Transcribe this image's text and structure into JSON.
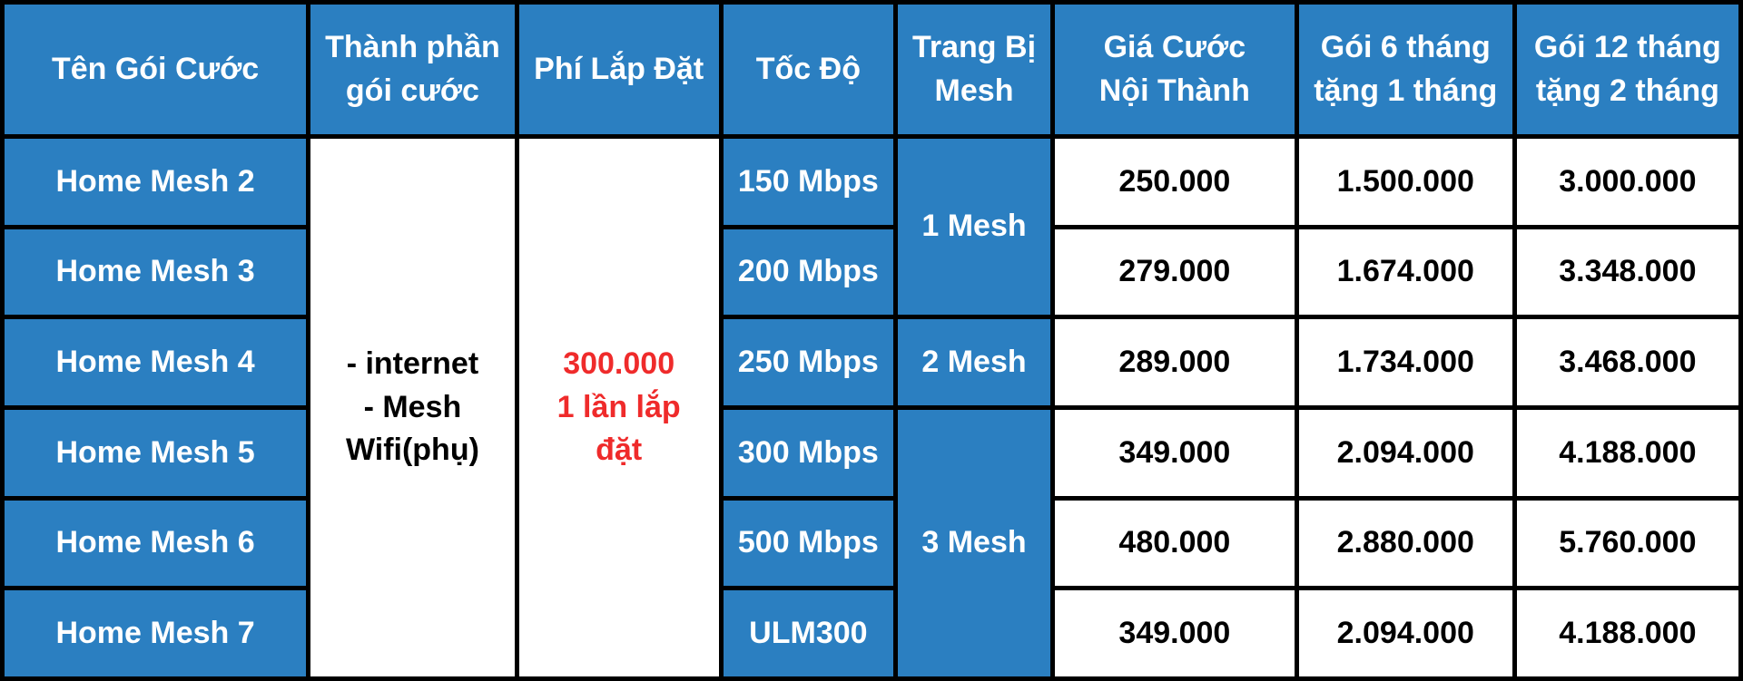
{
  "headers": {
    "package_name": "Tên Gói Cước",
    "components_line1": "Thành phần",
    "components_line2": "gói cước",
    "install_fee": "Phí Lắp Đặt",
    "speed": "Tốc Độ",
    "mesh_line1": "Trang Bị",
    "mesh_line2": "Mesh",
    "price_line1": "Giá Cước",
    "price_line2": "Nội Thành",
    "six_month_line1": "Gói 6 tháng",
    "six_month_line2": "tặng 1 tháng",
    "twelve_month_line1": "Gói 12 tháng",
    "twelve_month_line2": "tặng 2 tháng"
  },
  "components": {
    "line1": "- internet",
    "line2": "- Mesh",
    "line3": "Wifi(phụ)"
  },
  "install_fee": {
    "line1": "300.000",
    "line2": "1 lần lắp",
    "line3": "đặt"
  },
  "mesh_groups": {
    "group1": "1 Mesh",
    "group2": "2 Mesh",
    "group3": "3 Mesh"
  },
  "rows": [
    {
      "name": "Home Mesh 2",
      "speed": "150 Mbps",
      "price": "250.000",
      "six_month": "1.500.000",
      "twelve_month": "3.000.000"
    },
    {
      "name": "Home Mesh 3",
      "speed": "200 Mbps",
      "price": "279.000",
      "six_month": "1.674.000",
      "twelve_month": "3.348.000"
    },
    {
      "name": "Home Mesh 4",
      "speed": "250 Mbps",
      "price": "289.000",
      "six_month": "1.734.000",
      "twelve_month": "3.468.000"
    },
    {
      "name": "Home Mesh 5",
      "speed": "300 Mbps",
      "price": "349.000",
      "six_month": "2.094.000",
      "twelve_month": "4.188.000"
    },
    {
      "name": "Home Mesh 6",
      "speed": "500 Mbps",
      "price": "480.000",
      "six_month": "2.880.000",
      "twelve_month": "5.760.000"
    },
    {
      "name": "Home Mesh 7",
      "speed": "ULM300",
      "price": "349.000",
      "six_month": "2.094.000",
      "twelve_month": "4.188.000"
    }
  ],
  "colors": {
    "header_blue": "#2b7fc1",
    "border": "#000000",
    "install_fee_red": "#ef2b2b"
  }
}
